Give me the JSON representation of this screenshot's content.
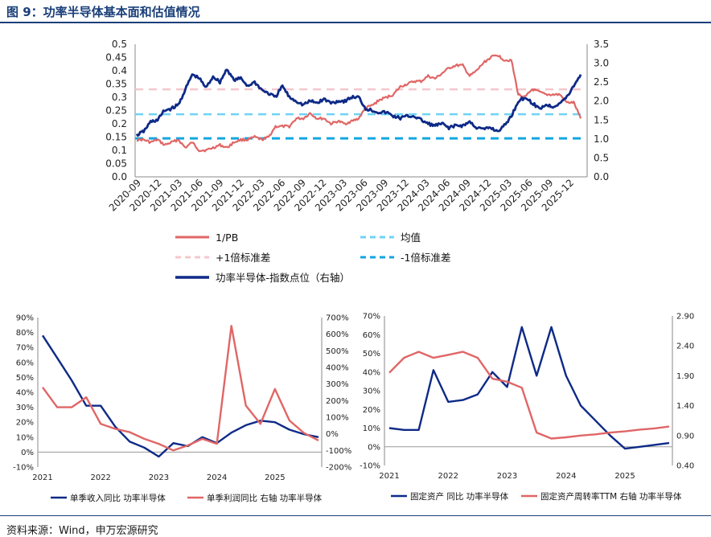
{
  "figure": {
    "title": "图 9：功率半导体基本面和估值情况",
    "source": "资料来源：Wind，申万宏源研究"
  },
  "colors": {
    "red": "#e06666",
    "navy": "#0e2a87",
    "pink": "#f4c7cc",
    "lightblue": "#6fd3f4",
    "blue": "#12a6e0"
  },
  "chart_data": [
    {
      "type": "line",
      "id": "valuation",
      "left_ylim": [
        0,
        0.5
      ],
      "right_ylim": [
        0,
        3.5
      ],
      "left_ticks": [
        "0.0",
        "0.05",
        "0.1",
        "0.15",
        "0.2",
        "0.25",
        "0.3",
        "0.35",
        "0.4",
        "0.45",
        "0.5"
      ],
      "right_ticks": [
        "0.0",
        "0.5",
        "1.0",
        "1.5",
        "2.0",
        "2.5",
        "3.0",
        "3.5"
      ],
      "x_labels": [
        "2020-09",
        "2020-12",
        "2021-03",
        "2021-06",
        "2021-09",
        "2021-12",
        "2022-03",
        "2022-06",
        "2022-09",
        "2022-12",
        "2023-03",
        "2023-06",
        "2023-09",
        "2023-12",
        "2024-03",
        "2024-06",
        "2024-09",
        "2024-12",
        "2025-03",
        "2025-06",
        "2025-09",
        "2025-12"
      ],
      "x_range_months": [
        0,
        64
      ],
      "series": [
        {
          "name": "1/PB",
          "axis": "left",
          "style": "solid",
          "color": "red",
          "points": [
            [
              0,
              0.14
            ],
            [
              1,
              0.14
            ],
            [
              2,
              0.13
            ],
            [
              3,
              0.14
            ],
            [
              4,
              0.12
            ],
            [
              5,
              0.13
            ],
            [
              6,
              0.14
            ],
            [
              7,
              0.11
            ],
            [
              8,
              0.13
            ],
            [
              9,
              0.1
            ],
            [
              10,
              0.1
            ],
            [
              11,
              0.11
            ],
            [
              12,
              0.12
            ],
            [
              13,
              0.11
            ],
            [
              14,
              0.13
            ],
            [
              15,
              0.14
            ],
            [
              16,
              0.14
            ],
            [
              17,
              0.15
            ],
            [
              18,
              0.14
            ],
            [
              19,
              0.15
            ],
            [
              20,
              0.19
            ],
            [
              21,
              0.19
            ],
            [
              22,
              0.19
            ],
            [
              23,
              0.22
            ],
            [
              24,
              0.22
            ],
            [
              25,
              0.24
            ],
            [
              26,
              0.22
            ],
            [
              27,
              0.22
            ],
            [
              28,
              0.2
            ],
            [
              29,
              0.21
            ],
            [
              30,
              0.2
            ],
            [
              31,
              0.21
            ],
            [
              32,
              0.22
            ],
            [
              33,
              0.26
            ],
            [
              34,
              0.27
            ],
            [
              35,
              0.29
            ],
            [
              36,
              0.3
            ],
            [
              37,
              0.31
            ],
            [
              38,
              0.34
            ],
            [
              39,
              0.35
            ],
            [
              40,
              0.36
            ],
            [
              41,
              0.36
            ],
            [
              42,
              0.38
            ],
            [
              43,
              0.37
            ],
            [
              44,
              0.39
            ],
            [
              45,
              0.41
            ],
            [
              46,
              0.42
            ],
            [
              47,
              0.42
            ],
            [
              48,
              0.38
            ],
            [
              49,
              0.4
            ],
            [
              50,
              0.43
            ],
            [
              51,
              0.45
            ],
            [
              52,
              0.46
            ],
            [
              53,
              0.44
            ],
            [
              54,
              0.44
            ],
            [
              55,
              0.31
            ],
            [
              56,
              0.3
            ],
            [
              57,
              0.33
            ],
            [
              58,
              0.32
            ],
            [
              59,
              0.31
            ],
            [
              60,
              0.31
            ],
            [
              61,
              0.31
            ],
            [
              62,
              0.28
            ],
            [
              63,
              0.28
            ],
            [
              64,
              0.22
            ]
          ]
        },
        {
          "name": "均值",
          "axis": "left",
          "style": "dashed",
          "color": "lightblue",
          "value": 0.236
        },
        {
          "name": "+1倍标准差",
          "axis": "left",
          "style": "dashed",
          "color": "pink",
          "value": 0.33
        },
        {
          "name": "-1倍标准差",
          "axis": "left",
          "style": "dashed",
          "color": "blue",
          "value": 0.145
        },
        {
          "name": "功率半导体-指数点位（右轴）",
          "axis": "right",
          "style": "solid",
          "color": "navy",
          "points": [
            [
              0,
              1.1
            ],
            [
              1,
              1.2
            ],
            [
              2,
              1.45
            ],
            [
              3,
              1.5
            ],
            [
              4,
              1.75
            ],
            [
              5,
              1.8
            ],
            [
              6,
              1.9
            ],
            [
              7,
              2.3
            ],
            [
              8,
              2.7
            ],
            [
              9,
              2.6
            ],
            [
              10,
              2.35
            ],
            [
              11,
              2.65
            ],
            [
              12,
              2.5
            ],
            [
              13,
              2.85
            ],
            [
              14,
              2.55
            ],
            [
              15,
              2.6
            ],
            [
              16,
              2.4
            ],
            [
              17,
              2.5
            ],
            [
              18,
              2.3
            ],
            [
              19,
              2.2
            ],
            [
              20,
              2.1
            ],
            [
              21,
              2.4
            ],
            [
              22,
              2.1
            ],
            [
              23,
              2.0
            ],
            [
              24,
              1.9
            ],
            [
              25,
              2.0
            ],
            [
              26,
              1.95
            ],
            [
              27,
              2.05
            ],
            [
              28,
              1.95
            ],
            [
              29,
              2.0
            ],
            [
              30,
              2.0
            ],
            [
              31,
              2.1
            ],
            [
              32,
              2.1
            ],
            [
              33,
              1.8
            ],
            [
              34,
              1.75
            ],
            [
              35,
              1.7
            ],
            [
              36,
              1.7
            ],
            [
              37,
              1.6
            ],
            [
              38,
              1.55
            ],
            [
              39,
              1.6
            ],
            [
              40,
              1.6
            ],
            [
              41,
              1.5
            ],
            [
              42,
              1.4
            ],
            [
              43,
              1.35
            ],
            [
              44,
              1.4
            ],
            [
              45,
              1.3
            ],
            [
              46,
              1.35
            ],
            [
              47,
              1.35
            ],
            [
              48,
              1.45
            ],
            [
              49,
              1.3
            ],
            [
              50,
              1.25
            ],
            [
              51,
              1.3
            ],
            [
              52,
              1.2
            ],
            [
              53,
              1.35
            ],
            [
              54,
              1.6
            ],
            [
              55,
              2.0
            ],
            [
              56,
              2.1
            ],
            [
              57,
              1.95
            ],
            [
              58,
              1.8
            ],
            [
              59,
              1.9
            ],
            [
              60,
              1.85
            ],
            [
              61,
              1.95
            ],
            [
              62,
              2.1
            ],
            [
              63,
              2.4
            ],
            [
              64,
              2.7
            ]
          ]
        }
      ],
      "legend": [
        "1/PB",
        "均值",
        "+1倍标准差",
        "-1倍标准差",
        "功率半导体-指数点位（右轴）"
      ]
    },
    {
      "type": "line",
      "id": "revenue_profit",
      "left_ylim": [
        -10,
        90
      ],
      "right_ylim": [
        -200,
        700
      ],
      "left_ticks": [
        "-10%",
        "0%",
        "10%",
        "20%",
        "30%",
        "40%",
        "50%",
        "60%",
        "70%",
        "80%",
        "90%"
      ],
      "right_ticks": [
        "-200%",
        "-100%",
        "0%",
        "100%",
        "200%",
        "300%",
        "400%",
        "500%",
        "600%",
        "700%"
      ],
      "x_labels": [
        "2021",
        "2022",
        "2023",
        "2024",
        "2025"
      ],
      "x_range": [
        2021,
        2025.75
      ],
      "series": [
        {
          "name": "单季收入同比 功率半导体",
          "axis": "left",
          "color": "navy",
          "x": [
            2021,
            2021.25,
            2021.5,
            2021.75,
            2022,
            2022.25,
            2022.5,
            2022.75,
            2023,
            2023.25,
            2023.5,
            2023.75,
            2024,
            2024.25,
            2024.5,
            2024.75,
            2025,
            2025.25,
            2025.5,
            2025.75
          ],
          "values": [
            78,
            63,
            48,
            31,
            31,
            17,
            7,
            3,
            -3,
            6,
            4,
            10,
            6,
            13,
            18,
            21,
            20,
            15,
            12,
            10
          ]
        },
        {
          "name": "单季利润同比 右轴 功率半导体",
          "axis": "right",
          "color": "red",
          "x": [
            2021,
            2021.25,
            2021.5,
            2021.75,
            2022,
            2022.25,
            2022.5,
            2022.75,
            2023,
            2023.25,
            2023.5,
            2023.75,
            2024,
            2024.25,
            2024.5,
            2024.75,
            2025,
            2025.25,
            2025.5,
            2025.75
          ],
          "values": [
            280,
            160,
            160,
            220,
            60,
            30,
            10,
            -30,
            -60,
            -100,
            -70,
            -30,
            -60,
            650,
            170,
            60,
            270,
            80,
            5,
            -40
          ]
        }
      ],
      "legend": [
        "单季收入同比 功率半导体",
        "单季利润同比 右轴 功率半导体"
      ]
    },
    {
      "type": "line",
      "id": "fixed_assets",
      "left_ylim": [
        -10,
        70
      ],
      "right_ylim": [
        0.4,
        2.9
      ],
      "left_ticks": [
        "-10%",
        "0%",
        "10%",
        "20%",
        "30%",
        "40%",
        "50%",
        "60%",
        "70%"
      ],
      "right_ticks": [
        "0.40",
        "0.90",
        "1.40",
        "1.90",
        "2.40",
        "2.90"
      ],
      "x_labels": [
        "2021",
        "2022",
        "2023",
        "2024",
        "2025"
      ],
      "x_range": [
        2021,
        2025.75
      ],
      "series": [
        {
          "name": "固定资产 同比 功率半导体",
          "axis": "left",
          "color": "navy",
          "x": [
            2021,
            2021.25,
            2021.5,
            2021.75,
            2022,
            2022.25,
            2022.5,
            2022.75,
            2023,
            2023.25,
            2023.5,
            2023.75,
            2024,
            2024.25,
            2024.5,
            2024.75,
            2025,
            2025.25,
            2025.5,
            2025.75
          ],
          "values": [
            10,
            9,
            9,
            41,
            24,
            25,
            28,
            40,
            32,
            64,
            38,
            64,
            38,
            22,
            14,
            6,
            -1,
            0,
            1,
            2
          ]
        },
        {
          "name": "固定资产周转率TTM 右轴 功率半导体",
          "axis": "right",
          "color": "red",
          "x": [
            2021,
            2021.25,
            2021.5,
            2021.75,
            2022,
            2022.25,
            2022.5,
            2022.75,
            2023,
            2023.25,
            2023.5,
            2023.75,
            2024,
            2024.25,
            2024.5,
            2024.75,
            2025,
            2025.25,
            2025.5,
            2025.75
          ],
          "values": [
            1.95,
            2.2,
            2.3,
            2.2,
            2.25,
            2.3,
            2.2,
            1.85,
            1.8,
            1.7,
            0.95,
            0.85,
            0.87,
            0.9,
            0.92,
            0.95,
            0.97,
            1.0,
            1.02,
            1.05
          ]
        }
      ],
      "legend": [
        "固定资产 同比 功率半导体",
        "固定资产周转率TTM 右轴 功率半导体"
      ]
    }
  ]
}
